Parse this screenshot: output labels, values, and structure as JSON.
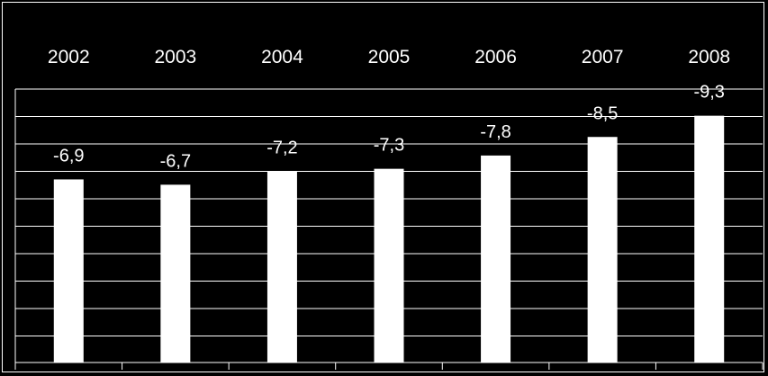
{
  "chart_data": {
    "type": "bar",
    "title": "",
    "xlabel": "",
    "ylabel": "",
    "categories": [
      "2002",
      "2003",
      "2004",
      "2005",
      "2006",
      "2007",
      "2008"
    ],
    "values": [
      -6.9,
      -6.7,
      -7.2,
      -7.3,
      -7.8,
      -8.5,
      -9.3
    ],
    "data_labels": [
      "-6,9",
      "-6,7",
      "-7,2",
      "-7,3",
      "-7,8",
      "-8,5",
      "-9,3"
    ],
    "category_position": "top",
    "grid": true,
    "colors": {
      "background": "#000000",
      "bar": "#ffffff",
      "grid": "#ffffff",
      "text": "#ffffff"
    }
  }
}
